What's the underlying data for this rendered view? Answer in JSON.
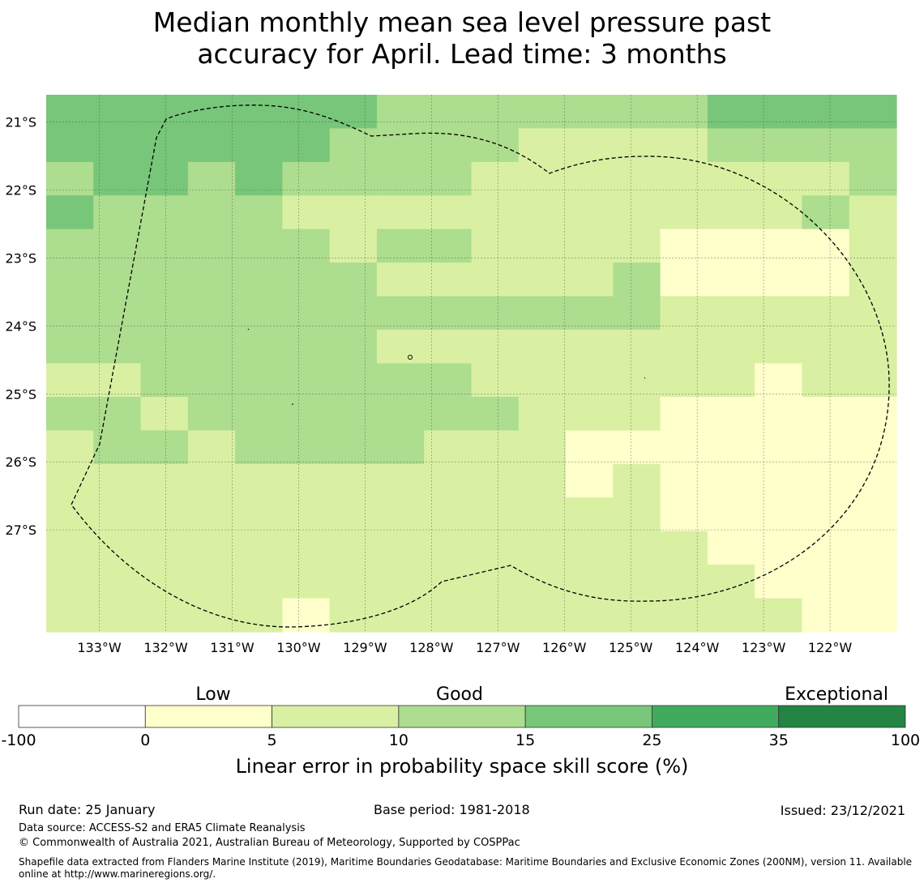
{
  "title_line1": "Median monthly mean sea level pressure past",
  "title_line2": "accuracy for April. Lead time: 3 months",
  "chart_data": {
    "type": "heatmap",
    "title": "Median monthly mean sea level pressure past accuracy for April. Lead time: 3 months",
    "variable": "Linear error in probability space skill score (%)",
    "x_ticks": [
      "133°W",
      "132°W",
      "131°W",
      "130°W",
      "129°W",
      "128°W",
      "127°W",
      "126°W",
      "125°W",
      "124°W",
      "123°W",
      "122°W"
    ],
    "y_ticks": [
      "21°S",
      "22°S",
      "23°S",
      "24°S",
      "25°S",
      "26°S",
      "27°S"
    ],
    "xlim": [
      -133.8,
      -121.0
    ],
    "ylim": [
      -28.5,
      -20.6
    ],
    "grid_note": "rows top (north) to bottom (south), columns west to east; values are skill-score class indices 1-5 matching the colorbar bins",
    "grid": [
      [
        4,
        4,
        4,
        4,
        4,
        4,
        4,
        3,
        3,
        3,
        3,
        3,
        3,
        3,
        4,
        4,
        4,
        4
      ],
      [
        4,
        4,
        4,
        4,
        4,
        4,
        3,
        3,
        3,
        3,
        2,
        2,
        2,
        2,
        3,
        3,
        3,
        3
      ],
      [
        3,
        4,
        4,
        3,
        4,
        3,
        3,
        3,
        3,
        2,
        2,
        2,
        2,
        2,
        2,
        2,
        2,
        3
      ],
      [
        4,
        3,
        3,
        3,
        3,
        2,
        2,
        2,
        2,
        2,
        2,
        2,
        2,
        2,
        2,
        2,
        3,
        2
      ],
      [
        3,
        3,
        3,
        3,
        3,
        3,
        2,
        3,
        3,
        2,
        2,
        2,
        2,
        1,
        1,
        1,
        1,
        2
      ],
      [
        3,
        3,
        3,
        3,
        3,
        3,
        3,
        2,
        2,
        2,
        2,
        2,
        3,
        1,
        1,
        1,
        1,
        2
      ],
      [
        3,
        3,
        3,
        3,
        3,
        3,
        3,
        3,
        3,
        3,
        3,
        3,
        3,
        2,
        2,
        2,
        2,
        2
      ],
      [
        3,
        3,
        3,
        3,
        3,
        3,
        3,
        2,
        2,
        2,
        2,
        2,
        2,
        2,
        2,
        2,
        2,
        2
      ],
      [
        2,
        2,
        3,
        3,
        3,
        3,
        3,
        3,
        3,
        2,
        2,
        2,
        2,
        2,
        2,
        1,
        2,
        2
      ],
      [
        3,
        3,
        2,
        3,
        3,
        3,
        3,
        3,
        3,
        3,
        2,
        2,
        2,
        1,
        1,
        1,
        1,
        1
      ],
      [
        2,
        3,
        3,
        2,
        3,
        3,
        3,
        3,
        2,
        2,
        2,
        1,
        1,
        1,
        1,
        1,
        1,
        1
      ],
      [
        2,
        2,
        2,
        2,
        2,
        2,
        2,
        2,
        2,
        2,
        2,
        1,
        2,
        1,
        1,
        1,
        1,
        1
      ],
      [
        2,
        2,
        2,
        2,
        2,
        2,
        2,
        2,
        2,
        2,
        2,
        2,
        2,
        1,
        1,
        1,
        1,
        1
      ],
      [
        2,
        2,
        2,
        2,
        2,
        2,
        2,
        2,
        2,
        2,
        2,
        2,
        2,
        2,
        1,
        1,
        1,
        1
      ],
      [
        2,
        2,
        2,
        2,
        2,
        2,
        2,
        2,
        2,
        2,
        2,
        2,
        2,
        2,
        2,
        1,
        1,
        1
      ],
      [
        2,
        2,
        2,
        2,
        2,
        1,
        2,
        2,
        2,
        2,
        2,
        2,
        2,
        2,
        2,
        2,
        1,
        1
      ]
    ],
    "colorbar": {
      "label": "Linear error in probability space skill score (%)",
      "ticks": [
        "-100",
        "0",
        "5",
        "10",
        "15",
        "25",
        "35",
        "100"
      ],
      "colors": [
        "#ffffff",
        "#ffffcc",
        "#d9f0a3",
        "#addd8e",
        "#78c679",
        "#41ab5d",
        "#238443"
      ],
      "category_labels": [
        "Low",
        "Good",
        "Exceptional"
      ]
    }
  },
  "footer": {
    "run_date": "Run date: 25 January",
    "base_period": "Base period: 1981-2018",
    "issued": "Issued: 23/12/2021",
    "data_source": "Data source: ACCESS-S2 and ERA5 Climate Reanalysis",
    "copyright": "© Commonwealth of Australia 2021, Australian Bureau of Meteorology, Supported by COSPPac",
    "shapefile_line1": "Shapefile data extracted from Flanders Marine Institute (2019), Maritime Boundaries Geodatabase: Maritime Boundaries and Exclusive Economic Zones (200NM), version 11. Available",
    "shapefile_line2": "online at http://www.marineregions.org/."
  }
}
